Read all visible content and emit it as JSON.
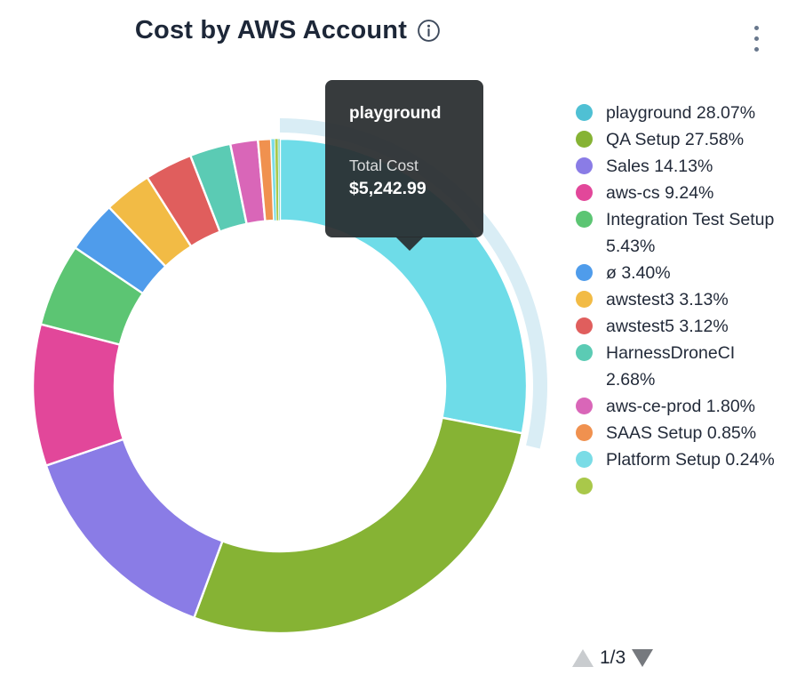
{
  "header": {
    "title": "Cost by AWS Account"
  },
  "tooltip": {
    "series": "playground",
    "label": "Total Cost",
    "value": "$5,242.99"
  },
  "legend": {
    "page_indicator": "1/3",
    "up_enabled": false,
    "down_enabled": true,
    "partial_next_dot_color": "#a9c84a"
  },
  "chart_data": {
    "type": "pie",
    "donut": true,
    "title": "Cost by AWS Account",
    "start_angle_deg": 0,
    "direction": "clockwise",
    "hovered_slice": "playground",
    "hovered_value": "$5,242.99",
    "legend_position": "right",
    "geometry": {
      "cx": 315,
      "cy": 349,
      "outer_r": 278,
      "inner_r": 186,
      "halo_inner_r": 285,
      "halo_outer_r": 301,
      "halo_end_extra_deg": 2.5
    },
    "highlight_arc_color": "#d9edf5",
    "series": [
      {
        "name": "playground",
        "pct": 28.07,
        "color": "#4fc0d4",
        "hover_color": "#6edce8",
        "hovered": true,
        "legend_label": "playground 28.07%"
      },
      {
        "name": "QA Setup",
        "pct": 27.58,
        "color": "#86b334",
        "legend_label": "QA Setup 27.58%"
      },
      {
        "name": "Sales",
        "pct": 14.13,
        "color": "#8a7ce6",
        "legend_label": "Sales 14.13%"
      },
      {
        "name": "aws-cs",
        "pct": 9.24,
        "color": "#e2479a",
        "legend_label": "aws-cs 9.24%"
      },
      {
        "name": "Integration Test Setup",
        "pct": 5.43,
        "color": "#5cc573",
        "legend_label": "Integration Test Setup 5.43%"
      },
      {
        "name": "ø",
        "pct": 3.4,
        "color": "#4f9ceb",
        "legend_label": "ø 3.40%"
      },
      {
        "name": "awstest3",
        "pct": 3.13,
        "color": "#f2bb45",
        "legend_label": "awstest3 3.13%"
      },
      {
        "name": "awstest5",
        "pct": 3.12,
        "color": "#e05e5d",
        "legend_label": "awstest5 3.12%"
      },
      {
        "name": "HarnessDroneCI",
        "pct": 2.68,
        "color": "#5bcbb4",
        "legend_label": "HarnessDroneCI 2.68%"
      },
      {
        "name": "aws-ce-prod",
        "pct": 1.8,
        "color": "#d966b8",
        "legend_label": "aws-ce-prod 1.80%"
      },
      {
        "name": "SAAS Setup",
        "pct": 0.85,
        "color": "#f0914f",
        "legend_label": "SAAS Setup 0.85%"
      },
      {
        "name": "Platform Setup",
        "pct": 0.24,
        "color": "#7adce6",
        "legend_label": "Platform Setup 0.24%"
      }
    ],
    "others": [
      {
        "pct": 0.22,
        "color": "#a9c84a"
      },
      {
        "pct": 0.11,
        "color": "#5bcbb4"
      }
    ]
  }
}
